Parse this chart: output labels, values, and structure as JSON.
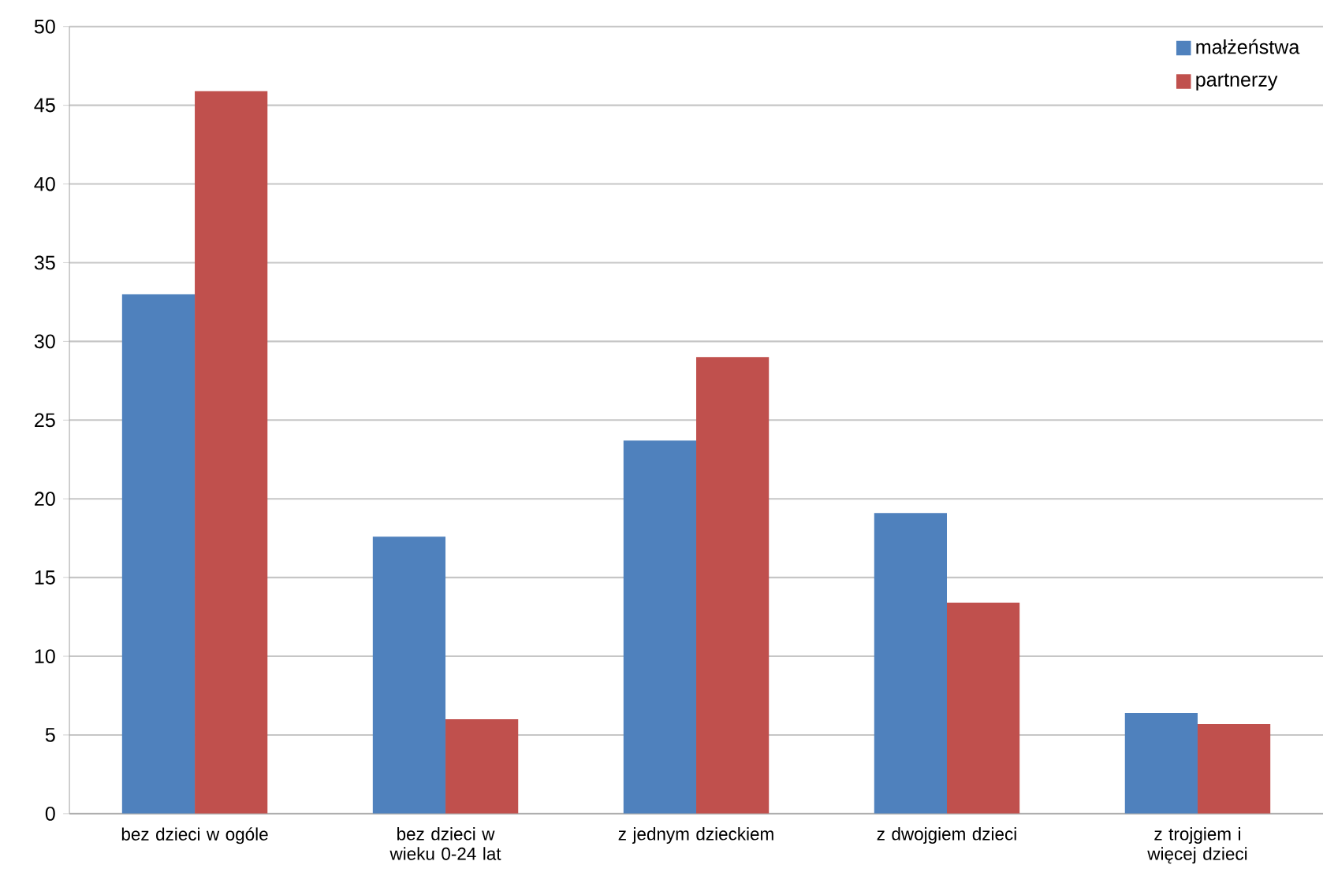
{
  "chart_data": {
    "type": "bar",
    "categories": [
      "bez dzieci w ogóle",
      "bez dzieci w wieku 0-24 lat",
      "z jednym dzieckiem",
      "z dwojgiem dzieci",
      "z trojgiem i więcej dzieci"
    ],
    "series": [
      {
        "name": "małżeństwa",
        "color": "#4f81bd",
        "values": [
          33.0,
          17.6,
          23.7,
          19.1,
          6.4
        ]
      },
      {
        "name": "partnerzy",
        "color": "#c0504d",
        "values": [
          45.9,
          6.0,
          29.0,
          13.4,
          5.7
        ]
      }
    ],
    "ylim": [
      0,
      50
    ],
    "yticks": [
      0,
      5,
      10,
      15,
      20,
      25,
      30,
      35,
      40,
      45,
      50
    ],
    "grid": "y",
    "legend": "top right"
  }
}
